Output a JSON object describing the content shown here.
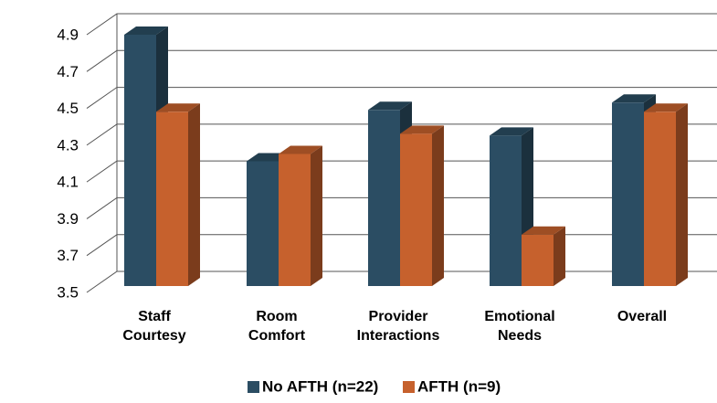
{
  "chart_data": {
    "type": "bar3d",
    "categories": [
      [
        "Staff",
        "Courtesy"
      ],
      [
        "Room",
        "Comfort"
      ],
      [
        "Provider",
        "Interactions"
      ],
      [
        "Emotional",
        "Needs"
      ],
      [
        "Overall"
      ]
    ],
    "series": [
      {
        "name": "No AFTH (n=22)",
        "color": "#2b4d63",
        "values": [
          4.87,
          4.18,
          4.46,
          4.32,
          4.5
        ]
      },
      {
        "name": "AFTH (n=9)",
        "color": "#c6612d",
        "values": [
          4.45,
          4.22,
          4.33,
          3.78,
          4.45
        ]
      }
    ],
    "ylim": [
      3.5,
      4.9
    ],
    "yticks": [
      3.5,
      3.7,
      3.9,
      4.1,
      4.3,
      4.5,
      4.7,
      4.9
    ],
    "grid": true,
    "legend": "bottom"
  }
}
